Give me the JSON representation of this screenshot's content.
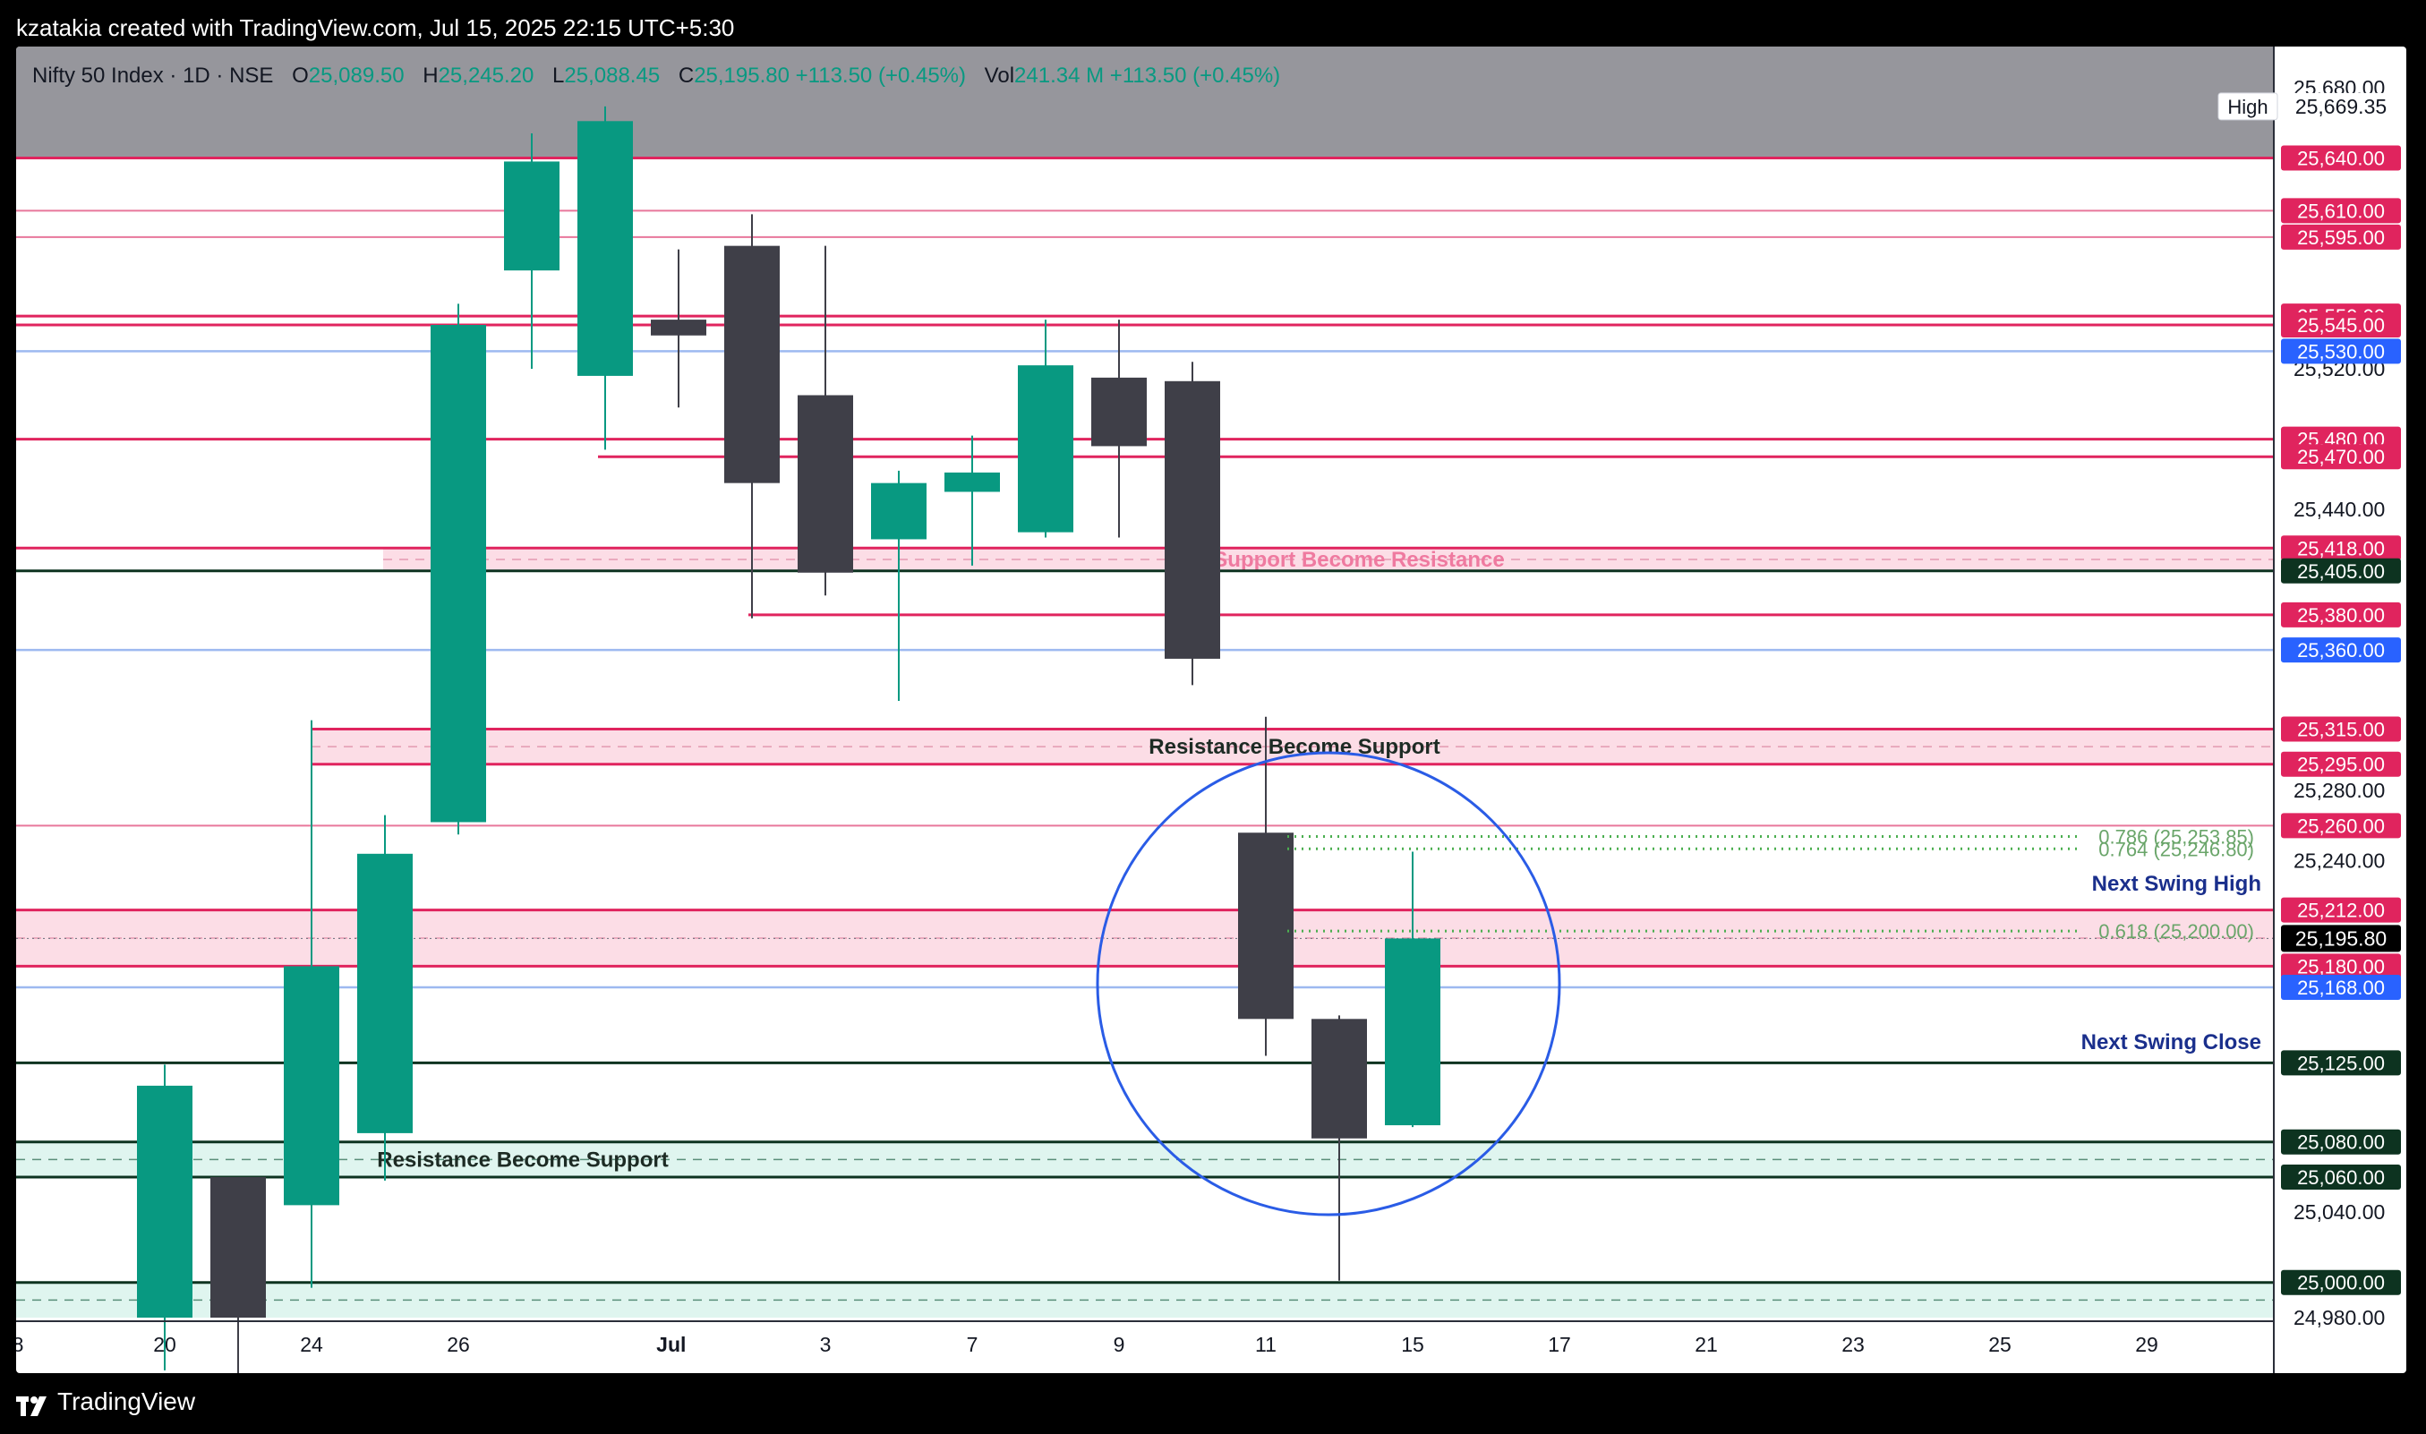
{
  "header": {
    "attribution": "kzatakia created with TradingView.com, Jul 15, 2025 22:15 UTC+5:30"
  },
  "legend": {
    "symbol": "Nifty 50 Index · 1D · NSE",
    "o_label": "O",
    "o_value": "25,089.50",
    "h_label": "H",
    "h_value": "25,245.20",
    "l_label": "L",
    "l_value": "25,088.45",
    "c_label": "C",
    "c_value": "25,195.80",
    "change": "+113.50 (+0.45%)",
    "vol_label": "Vol",
    "vol_value": "241.34 M",
    "vol_change": "+113.50 (+0.45%)"
  },
  "footer": {
    "brand": "TradingView"
  },
  "colors": {
    "up": "#089981",
    "down": "#3f3f48",
    "resistance_line": "#e0245e",
    "zone_fill": "#fcdde6",
    "support_fill": "#dff5ef",
    "blue_line": "#9db9f0",
    "blue_label": "#2962ff",
    "dark_line": "#0d3320",
    "fib": "#4caf50",
    "annotation_dark_blue": "#1a2f8c",
    "circle": "#2a5ce6",
    "high_band": "#96969c"
  },
  "chart_data": {
    "type": "candlestick",
    "ylim": [
      24980,
      25700
    ],
    "x_ticks": [
      "8",
      "20",
      "24",
      "26",
      "Jul",
      "3",
      "7",
      "9",
      "11",
      "15",
      "17",
      "21",
      "23",
      "25",
      "29"
    ],
    "x_tick_slots": [
      -2,
      0,
      2,
      4,
      6.9,
      9,
      11,
      13,
      15,
      17,
      19,
      21,
      23,
      25,
      27
    ],
    "y_ticks": [
      "25,680.00",
      "25,520.00",
      "25,440.00",
      "25,280.00",
      "25,240.00",
      "25,040.00",
      "24,980.00"
    ],
    "y_tick_values": [
      25680,
      25520,
      25440,
      25280,
      25240,
      25040,
      24980
    ],
    "candles": [
      {
        "date": "20",
        "open": 24980,
        "high": 25124,
        "low": 24950,
        "close": 25112
      },
      {
        "date": "23",
        "open": 25060,
        "high": 25060,
        "low": 24940,
        "close": 24980
      },
      {
        "date": "24",
        "open": 25044,
        "high": 25320,
        "low": 24997,
        "close": 25180
      },
      {
        "date": "25",
        "open": 25085,
        "high": 25266,
        "low": 25058,
        "close": 25244
      },
      {
        "date": "26",
        "open": 25262,
        "high": 25557,
        "low": 25255,
        "close": 25545
      },
      {
        "date": "27",
        "open": 25576,
        "high": 25654,
        "low": 25520,
        "close": 25638
      },
      {
        "date": "30",
        "open": 25516,
        "high": 25669.35,
        "low": 25474,
        "close": 25661
      },
      {
        "date": "1",
        "open": 25548,
        "high": 25588,
        "low": 25498,
        "close": 25539
      },
      {
        "date": "2",
        "open": 25590,
        "high": 25608,
        "low": 25378,
        "close": 25455
      },
      {
        "date": "3",
        "open": 25505,
        "high": 25590,
        "low": 25391,
        "close": 25404
      },
      {
        "date": "4",
        "open": 25423,
        "high": 25462,
        "low": 25331,
        "close": 25455
      },
      {
        "date": "7",
        "open": 25450,
        "high": 25482,
        "low": 25408,
        "close": 25461
      },
      {
        "date": "8",
        "open": 25427,
        "high": 25548,
        "low": 25424,
        "close": 25522
      },
      {
        "date": "9",
        "open": 25515,
        "high": 25548,
        "low": 25424,
        "close": 25476
      },
      {
        "date": "10",
        "open": 25513,
        "high": 25524,
        "low": 25340,
        "close": 25355
      },
      {
        "date": "11",
        "open": 25256,
        "high": 25322,
        "low": 25129,
        "close": 25150
      },
      {
        "date": "14",
        "open": 25150,
        "high": 25152,
        "low": 25001,
        "close": 25082
      },
      {
        "date": "15",
        "open": 25089.5,
        "high": 25245.2,
        "low": 25088.45,
        "close": 25195.8
      }
    ],
    "price_levels": [
      {
        "value": 25640,
        "label": "25,640.00",
        "kind": "res"
      },
      {
        "value": 25610,
        "label": "25,610.00",
        "kind": "res-thin"
      },
      {
        "value": 25595,
        "label": "25,595.00",
        "kind": "res-thin"
      },
      {
        "value": 25550,
        "label": "25,550.00",
        "kind": "res"
      },
      {
        "value": 25545,
        "label": "25,545.00",
        "kind": "res"
      },
      {
        "value": 25530,
        "label": "25,530.00",
        "kind": "blue"
      },
      {
        "value": 25480,
        "label": "25,480.00",
        "kind": "res"
      },
      {
        "value": 25470,
        "label": "25,470.00",
        "kind": "res"
      },
      {
        "value": 25418,
        "label": "25,418.00",
        "kind": "res"
      },
      {
        "value": 25405,
        "label": "25,405.00",
        "kind": "dark"
      },
      {
        "value": 25380,
        "label": "25,380.00",
        "kind": "res"
      },
      {
        "value": 25360,
        "label": "25,360.00",
        "kind": "blue"
      },
      {
        "value": 25315,
        "label": "25,315.00",
        "kind": "res"
      },
      {
        "value": 25295,
        "label": "25,295.00",
        "kind": "res"
      },
      {
        "value": 25260,
        "label": "25,260.00",
        "kind": "res-thin"
      },
      {
        "value": 25212,
        "label": "25,212.00",
        "kind": "res"
      },
      {
        "value": 25180,
        "label": "25,180.00",
        "kind": "res"
      },
      {
        "value": 25168,
        "label": "25,168.00",
        "kind": "blue"
      },
      {
        "value": 25125,
        "label": "25,125.00",
        "kind": "dark"
      },
      {
        "value": 25080,
        "label": "25,080.00",
        "kind": "dark"
      },
      {
        "value": 25060,
        "label": "25,060.00",
        "kind": "dark"
      },
      {
        "value": 25000,
        "label": "25,000.00",
        "kind": "dark"
      }
    ],
    "zones": [
      {
        "from": 25405,
        "to": 25418,
        "fill": "pink",
        "text": "Support Become Resistance"
      },
      {
        "from": 25295,
        "to": 25315,
        "fill": "pink",
        "text": "Resistance Become Support"
      },
      {
        "from": 25180,
        "to": 25212,
        "fill": "pink",
        "text": ""
      },
      {
        "from": 25060,
        "to": 25080,
        "fill": "green",
        "text": "Resistance Become Support"
      },
      {
        "from": 24980,
        "to": 25000,
        "fill": "green",
        "text": ""
      }
    ],
    "high_marker": {
      "label": "High",
      "value": 25669.35,
      "value_label": "25,669.35"
    },
    "last_price": {
      "value": 25195.8,
      "label": "25,195.80"
    },
    "fib_levels": [
      {
        "value": 25253.85,
        "text": "0.786 (25,253.85)"
      },
      {
        "value": 25246.8,
        "text": "0.764 (25,246.80)"
      },
      {
        "value": 25200,
        "text": "0.618 (25,200.00)"
      }
    ],
    "annotations": [
      {
        "text": "Next Swing High",
        "value": 25227
      },
      {
        "text": "Next Swing Close",
        "value": 25137
      }
    ],
    "highlight_circle": {
      "center_slot": 16,
      "center_value": 25170
    }
  }
}
